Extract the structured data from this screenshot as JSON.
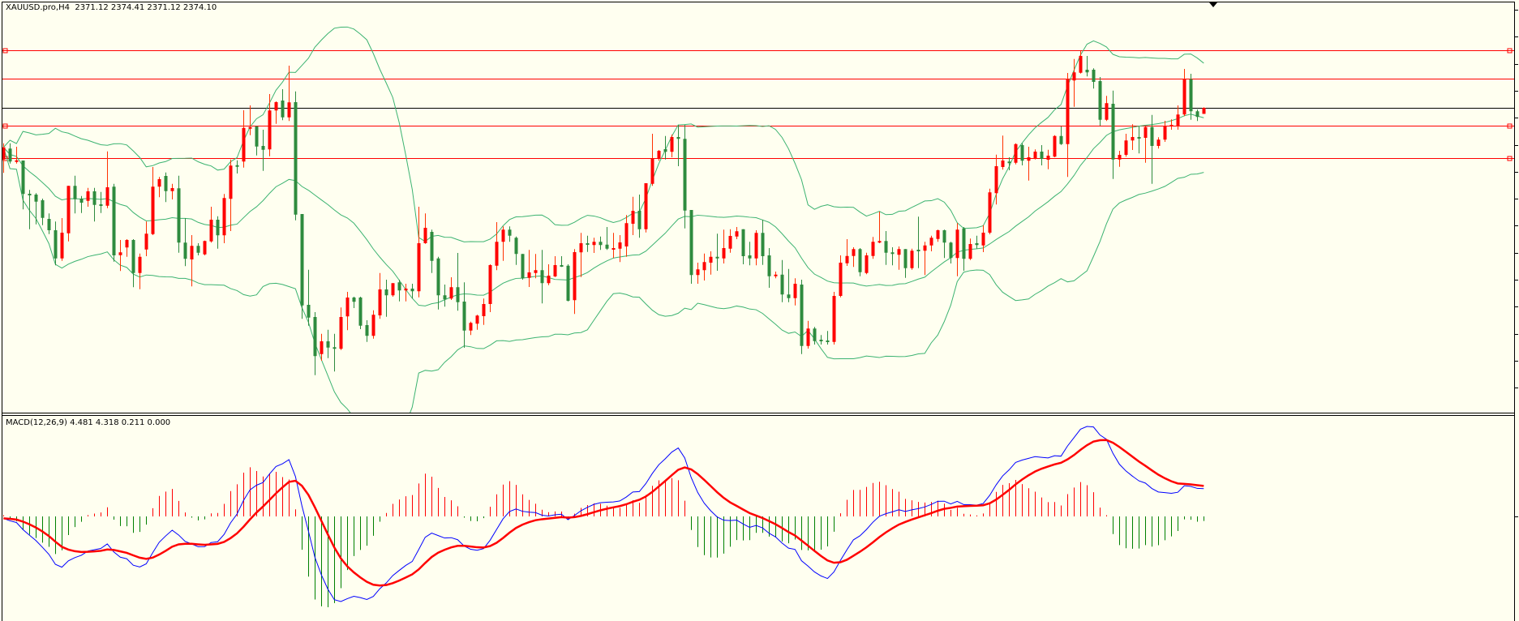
{
  "header": {
    "symbol_text": "XAUUSD.pro,H4  2371.12 2374.41 2371.12 2374.10"
  },
  "macd_panel": {
    "label": "MACD(12,26,9) 4.481 4.318 0.211 0.000"
  },
  "colors": {
    "background": "#fffff0",
    "bull_body": "#ff0000",
    "bull_wick": "#ff3300",
    "bear_body": "#2e8b3e",
    "bollinger": "#3cb371",
    "hline": "#ff0000",
    "bid_line": "#000000",
    "macd_main": "#0000ff",
    "macd_signal": "#ff0000",
    "hist_pos": "#ff0000",
    "hist_neg": "#008000"
  },
  "chart_data": [
    {
      "type": "candlestick",
      "symbol": "XAUUSD.pro",
      "timeframe": "H4",
      "last": {
        "open": 2371.12,
        "high": 2374.41,
        "low": 2371.12,
        "close": 2374.1
      },
      "ylim": [
        2222,
        2427
      ],
      "bid_price": 2374.1,
      "horizontal_levels": [
        2402.5,
        2388.5,
        2365.3,
        2349.3
      ],
      "indicators": [
        {
          "name": "Bollinger Bands",
          "period": 20,
          "deviation": 2
        }
      ],
      "ohlc": [
        [
          2348.6,
          2356.6,
          2342.0,
          2354.6
        ],
        [
          2354.0,
          2356.6,
          2346.6,
          2347.6
        ],
        [
          2347.6,
          2354.9,
          2346.6,
          2348.2
        ],
        [
          2348.1,
          2348.1,
          2324.0,
          2331.6
        ],
        [
          2331.7,
          2333.6,
          2314.2,
          2331.0
        ],
        [
          2331.3,
          2332.0,
          2316.6,
          2327.8
        ],
        [
          2328.5,
          2329.3,
          2316.2,
          2319.8
        ],
        [
          2319.3,
          2322.0,
          2311.8,
          2313.7
        ],
        [
          2313.7,
          2318.0,
          2296.4,
          2299.8
        ],
        [
          2299.8,
          2319.7,
          2298.6,
          2312.5
        ],
        [
          2312.2,
          2335.6,
          2308.2,
          2335.6
        ],
        [
          2335.6,
          2340.6,
          2322.0,
          2329.0
        ],
        [
          2329.3,
          2330.6,
          2322.2,
          2327.3
        ],
        [
          2328.2,
          2334.6,
          2325.3,
          2332.9
        ],
        [
          2332.9,
          2334.6,
          2318.0,
          2326.2
        ],
        [
          2326.5,
          2332.6,
          2322.2,
          2325.8
        ],
        [
          2325.8,
          2352.6,
          2324.6,
          2334.9
        ],
        [
          2335.2,
          2336.6,
          2298.2,
          2301.3
        ],
        [
          2301.4,
          2308.9,
          2293.6,
          2302.8
        ],
        [
          2305.2,
          2309.3,
          2300.6,
          2308.9
        ],
        [
          2308.9,
          2309.3,
          2285.6,
          2292.6
        ],
        [
          2292.6,
          2302.2,
          2284.6,
          2300.6
        ],
        [
          2304.2,
          2318.0,
          2300.9,
          2312.0
        ],
        [
          2311.8,
          2344.9,
          2311.3,
          2335.2
        ],
        [
          2335.2,
          2340.0,
          2330.0,
          2338.9
        ],
        [
          2340.5,
          2342.2,
          2327.6,
          2333.0
        ],
        [
          2333.0,
          2336.6,
          2328.9,
          2334.5
        ],
        [
          2334.4,
          2340.6,
          2302.6,
          2307.6
        ],
        [
          2307.6,
          2319.7,
          2296.0,
          2299.6
        ],
        [
          2299.3,
          2311.3,
          2286.0,
          2306.0
        ],
        [
          2306.0,
          2307.3,
          2301.3,
          2302.6
        ],
        [
          2301.8,
          2308.6,
          2301.3,
          2308.4
        ],
        [
          2308.2,
          2325.3,
          2307.6,
          2318.9
        ],
        [
          2318.9,
          2320.6,
          2304.6,
          2311.2
        ],
        [
          2311.2,
          2331.6,
          2307.3,
          2329.6
        ],
        [
          2329.2,
          2348.6,
          2313.3,
          2345.6
        ],
        [
          2345.8,
          2348.2,
          2341.7,
          2345.2
        ],
        [
          2347.6,
          2372.9,
          2344.6,
          2364.2
        ],
        [
          2363.8,
          2375.3,
          2360.6,
          2364.6
        ],
        [
          2365.0,
          2365.0,
          2350.6,
          2355.0
        ],
        [
          2355.3,
          2363.3,
          2343.0,
          2353.4
        ],
        [
          2353.6,
          2380.9,
          2350.2,
          2372.8
        ],
        [
          2372.8,
          2377.3,
          2366.2,
          2376.9
        ],
        [
          2377.7,
          2383.3,
          2368.0,
          2369.4
        ],
        [
          2369.4,
          2394.9,
          2367.6,
          2376.8
        ],
        [
          2376.9,
          2382.2,
          2318.6,
          2321.4
        ],
        [
          2321.7,
          2321.7,
          2270.0,
          2276.6
        ],
        [
          2276.9,
          2294.2,
          2266.6,
          2270.6
        ],
        [
          2270.9,
          2273.3,
          2242.2,
          2251.6
        ],
        [
          2252.6,
          2262.6,
          2249.3,
          2258.9
        ],
        [
          2258.9,
          2264.6,
          2250.6,
          2255.8
        ],
        [
          2256.0,
          2262.6,
          2244.0,
          2255.2
        ],
        [
          2255.2,
          2275.6,
          2254.6,
          2270.9
        ],
        [
          2271.2,
          2283.3,
          2264.4,
          2280.5
        ],
        [
          2280.5,
          2280.9,
          2275.3,
          2278.4
        ],
        [
          2280.5,
          2280.9,
          2264.9,
          2266.6
        ],
        [
          2266.9,
          2269.3,
          2258.6,
          2261.6
        ],
        [
          2261.6,
          2274.2,
          2260.2,
          2272.0
        ],
        [
          2271.7,
          2292.6,
          2270.0,
          2284.5
        ],
        [
          2284.5,
          2289.3,
          2271.0,
          2281.6
        ],
        [
          2281.6,
          2287.6,
          2280.9,
          2287.6
        ],
        [
          2288.0,
          2289.3,
          2278.6,
          2284.0
        ],
        [
          2284.0,
          2287.3,
          2278.6,
          2284.9
        ],
        [
          2284.9,
          2287.3,
          2280.0,
          2283.6
        ],
        [
          2283.6,
          2325.3,
          2280.6,
          2307.3
        ],
        [
          2307.3,
          2322.0,
          2307.0,
          2314.9
        ],
        [
          2312.9,
          2314.0,
          2292.6,
          2298.6
        ],
        [
          2299.8,
          2300.6,
          2274.6,
          2281.6
        ],
        [
          2281.6,
          2286.9,
          2276.0,
          2279.6
        ],
        [
          2280.0,
          2290.5,
          2279.3,
          2285.6
        ],
        [
          2285.6,
          2302.5,
          2274.0,
          2278.2
        ],
        [
          2278.5,
          2288.0,
          2255.7,
          2264.2
        ],
        [
          2264.2,
          2268.6,
          2262.0,
          2268.0
        ],
        [
          2267.6,
          2272.0,
          2264.6,
          2271.6
        ],
        [
          2271.3,
          2280.0,
          2267.0,
          2277.3
        ],
        [
          2277.3,
          2296.9,
          2273.3,
          2296.5
        ],
        [
          2296.2,
          2317.7,
          2294.0,
          2308.0
        ],
        [
          2308.0,
          2315.6,
          2298.6,
          2314.0
        ],
        [
          2314.0,
          2315.6,
          2308.0,
          2311.0
        ],
        [
          2310.0,
          2310.6,
          2296.6,
          2302.0
        ],
        [
          2302.0,
          2302.0,
          2289.3,
          2290.0
        ],
        [
          2290.2,
          2304.0,
          2285.7,
          2292.9
        ],
        [
          2292.6,
          2302.0,
          2290.0,
          2294.0
        ],
        [
          2294.0,
          2304.0,
          2277.6,
          2287.6
        ],
        [
          2287.6,
          2296.9,
          2286.6,
          2291.3
        ],
        [
          2290.9,
          2300.9,
          2290.6,
          2296.5
        ],
        [
          2296.5,
          2300.9,
          2295.6,
          2295.8
        ],
        [
          2296.2,
          2296.9,
          2278.6,
          2278.9
        ],
        [
          2279.2,
          2304.4,
          2272.4,
          2302.9
        ],
        [
          2302.8,
          2312.4,
          2290.6,
          2307.3
        ],
        [
          2307.3,
          2311.0,
          2303.0,
          2306.6
        ],
        [
          2306.4,
          2310.0,
          2302.5,
          2308.0
        ],
        [
          2308.0,
          2310.6,
          2304.0,
          2306.4
        ],
        [
          2306.6,
          2315.3,
          2304.0,
          2304.6
        ],
        [
          2304.6,
          2312.4,
          2300.0,
          2304.9
        ],
        [
          2304.6,
          2311.3,
          2298.0,
          2307.7
        ],
        [
          2305.7,
          2321.2,
          2300.6,
          2317.2
        ],
        [
          2316.9,
          2330.2,
          2311.3,
          2323.3
        ],
        [
          2323.3,
          2331.3,
          2310.0,
          2314.2
        ],
        [
          2314.2,
          2336.9,
          2312.6,
          2336.9
        ],
        [
          2336.6,
          2361.3,
          2335.6,
          2349.2
        ],
        [
          2348.9,
          2353.3,
          2348.0,
          2352.9
        ],
        [
          2353.7,
          2360.2,
          2348.6,
          2352.4
        ],
        [
          2352.4,
          2360.9,
          2349.7,
          2359.7
        ],
        [
          2359.7,
          2365.7,
          2345.3,
          2358.8
        ],
        [
          2358.8,
          2365.7,
          2314.6,
          2323.4
        ],
        [
          2323.7,
          2323.7,
          2287.3,
          2291.6
        ],
        [
          2291.6,
          2297.7,
          2287.3,
          2294.4
        ],
        [
          2294.0,
          2302.2,
          2288.9,
          2298.0
        ],
        [
          2297.7,
          2303.3,
          2291.8,
          2300.6
        ],
        [
          2300.6,
          2312.0,
          2293.7,
          2300.2
        ],
        [
          2299.8,
          2314.0,
          2297.3,
          2304.9
        ],
        [
          2304.6,
          2314.2,
          2302.6,
          2310.9
        ],
        [
          2310.6,
          2315.3,
          2309.3,
          2313.2
        ],
        [
          2314.2,
          2314.2,
          2296.9,
          2300.9
        ],
        [
          2301.3,
          2308.0,
          2296.4,
          2299.8
        ],
        [
          2299.8,
          2313.7,
          2296.4,
          2312.4
        ],
        [
          2312.4,
          2318.9,
          2296.6,
          2300.9
        ],
        [
          2301.3,
          2304.9,
          2285.3,
          2291.0
        ],
        [
          2291.0,
          2293.3,
          2290.0,
          2291.8
        ],
        [
          2291.8,
          2299.0,
          2278.2,
          2282.0
        ],
        [
          2282.0,
          2294.6,
          2278.2,
          2280.2
        ],
        [
          2280.2,
          2290.0,
          2276.6,
          2287.3
        ],
        [
          2286.9,
          2289.3,
          2252.6,
          2256.6
        ],
        [
          2256.6,
          2269.0,
          2255.3,
          2265.2
        ],
        [
          2265.2,
          2266.0,
          2257.3,
          2259.0
        ],
        [
          2259.7,
          2262.0,
          2257.3,
          2259.0
        ],
        [
          2259.3,
          2264.0,
          2257.3,
          2258.6
        ],
        [
          2258.6,
          2283.3,
          2257.3,
          2281.3
        ],
        [
          2281.3,
          2301.3,
          2280.6,
          2297.7
        ],
        [
          2297.4,
          2309.3,
          2296.1,
          2301.0
        ],
        [
          2301.0,
          2305.3,
          2295.6,
          2304.4
        ],
        [
          2304.4,
          2304.9,
          2291.0,
          2293.0
        ],
        [
          2292.6,
          2302.6,
          2292.0,
          2301.3
        ],
        [
          2301.0,
          2310.4,
          2299.6,
          2308.0
        ],
        [
          2307.8,
          2322.9,
          2307.3,
          2308.4
        ],
        [
          2308.4,
          2313.3,
          2296.6,
          2302.6
        ],
        [
          2302.8,
          2305.3,
          2296.4,
          2302.0
        ],
        [
          2301.6,
          2305.7,
          2294.2,
          2304.4
        ],
        [
          2304.4,
          2304.4,
          2290.2,
          2295.0
        ],
        [
          2295.0,
          2304.6,
          2294.2,
          2303.6
        ],
        [
          2304.1,
          2320.4,
          2295.0,
          2303.6
        ],
        [
          2303.6,
          2308.0,
          2291.6,
          2306.2
        ],
        [
          2306.2,
          2311.0,
          2303.3,
          2310.0
        ],
        [
          2309.4,
          2314.0,
          2308.0,
          2313.7
        ],
        [
          2313.7,
          2314.0,
          2300.0,
          2307.6
        ],
        [
          2307.6,
          2308.0,
          2297.3,
          2300.0
        ],
        [
          2300.0,
          2317.2,
          2291.0,
          2314.0
        ],
        [
          2314.6,
          2315.3,
          2293.7,
          2299.6
        ],
        [
          2299.6,
          2309.6,
          2299.0,
          2306.9
        ],
        [
          2307.3,
          2311.0,
          2304.6,
          2306.4
        ],
        [
          2306.2,
          2316.2,
          2302.9,
          2312.5
        ],
        [
          2312.5,
          2334.2,
          2311.7,
          2332.4
        ],
        [
          2332.0,
          2351.0,
          2326.4,
          2345.3
        ],
        [
          2344.9,
          2360.4,
          2343.6,
          2348.1
        ],
        [
          2347.6,
          2349.7,
          2343.3,
          2347.0
        ],
        [
          2347.0,
          2356.6,
          2346.2,
          2356.2
        ],
        [
          2355.7,
          2356.6,
          2345.7,
          2348.0
        ],
        [
          2348.0,
          2354.9,
          2338.2,
          2349.7
        ],
        [
          2349.3,
          2353.6,
          2348.6,
          2352.5
        ],
        [
          2352.5,
          2355.7,
          2345.7,
          2348.9
        ],
        [
          2348.5,
          2353.4,
          2343.8,
          2350.5
        ],
        [
          2350.0,
          2360.6,
          2349.7,
          2360.2
        ],
        [
          2360.2,
          2364.9,
          2355.8,
          2356.2
        ],
        [
          2356.2,
          2391.3,
          2340.0,
          2388.2
        ],
        [
          2387.6,
          2398.2,
          2374.6,
          2391.6
        ],
        [
          2391.4,
          2402.2,
          2391.0,
          2399.7
        ],
        [
          2392.9,
          2399.7,
          2389.6,
          2391.6
        ],
        [
          2392.9,
          2393.6,
          2383.6,
          2386.9
        ],
        [
          2387.3,
          2389.3,
          2365.3,
          2368.2
        ],
        [
          2368.2,
          2380.0,
          2367.6,
          2376.4
        ],
        [
          2376.1,
          2382.6,
          2339.0,
          2348.6
        ],
        [
          2348.6,
          2352.9,
          2345.0,
          2350.9
        ],
        [
          2350.9,
          2361.3,
          2350.0,
          2358.0
        ],
        [
          2358.0,
          2366.0,
          2353.3,
          2359.7
        ],
        [
          2359.7,
          2364.9,
          2351.6,
          2359.3
        ],
        [
          2359.3,
          2364.9,
          2347.0,
          2364.6
        ],
        [
          2364.6,
          2370.6,
          2336.6,
          2355.3
        ],
        [
          2355.3,
          2359.6,
          2354.0,
          2358.4
        ],
        [
          2358.4,
          2367.7,
          2357.3,
          2365.3
        ],
        [
          2365.3,
          2368.4,
          2363.3,
          2365.7
        ],
        [
          2365.3,
          2375.3,
          2363.3,
          2370.8
        ],
        [
          2370.8,
          2393.3,
          2370.0,
          2388.2
        ],
        [
          2388.2,
          2390.9,
          2368.2,
          2372.4
        ],
        [
          2372.4,
          2373.3,
          2367.6,
          2369.6
        ],
        [
          2371.12,
          2374.41,
          2371.12,
          2374.1
        ]
      ]
    },
    {
      "type": "line",
      "indicator": "MACD",
      "params": {
        "fast": 12,
        "slow": 26,
        "signal": 9
      },
      "values": {
        "main": 4.481,
        "signal": 4.318,
        "histogram": 0.211,
        "level": 0.0
      }
    }
  ]
}
